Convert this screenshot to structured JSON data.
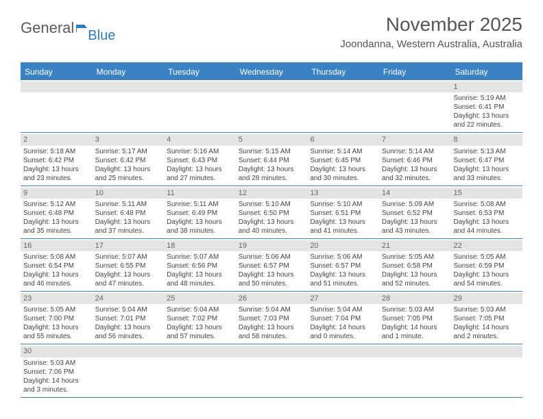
{
  "logo": {
    "text1": "General",
    "text2": "Blue"
  },
  "title": "November 2025",
  "location": "Joondanna, Western Australia, Australia",
  "colors": {
    "header_bg": "#3b82c4",
    "header_text": "#ffffff",
    "border": "#3b82c4",
    "daynum_bg": "#e4e4e4",
    "text": "#444444",
    "logo_gray": "#5a5a5a",
    "logo_blue": "#2c7bc0"
  },
  "day_headers": [
    "Sunday",
    "Monday",
    "Tuesday",
    "Wednesday",
    "Thursday",
    "Friday",
    "Saturday"
  ],
  "weeks": [
    [
      null,
      null,
      null,
      null,
      null,
      null,
      {
        "n": "1",
        "sr": "Sunrise: 5:19 AM",
        "ss": "Sunset: 6:41 PM",
        "d1": "Daylight: 13 hours",
        "d2": "and 22 minutes."
      }
    ],
    [
      {
        "n": "2",
        "sr": "Sunrise: 5:18 AM",
        "ss": "Sunset: 6:42 PM",
        "d1": "Daylight: 13 hours",
        "d2": "and 23 minutes."
      },
      {
        "n": "3",
        "sr": "Sunrise: 5:17 AM",
        "ss": "Sunset: 6:42 PM",
        "d1": "Daylight: 13 hours",
        "d2": "and 25 minutes."
      },
      {
        "n": "4",
        "sr": "Sunrise: 5:16 AM",
        "ss": "Sunset: 6:43 PM",
        "d1": "Daylight: 13 hours",
        "d2": "and 27 minutes."
      },
      {
        "n": "5",
        "sr": "Sunrise: 5:15 AM",
        "ss": "Sunset: 6:44 PM",
        "d1": "Daylight: 13 hours",
        "d2": "and 28 minutes."
      },
      {
        "n": "6",
        "sr": "Sunrise: 5:14 AM",
        "ss": "Sunset: 6:45 PM",
        "d1": "Daylight: 13 hours",
        "d2": "and 30 minutes."
      },
      {
        "n": "7",
        "sr": "Sunrise: 5:14 AM",
        "ss": "Sunset: 6:46 PM",
        "d1": "Daylight: 13 hours",
        "d2": "and 32 minutes."
      },
      {
        "n": "8",
        "sr": "Sunrise: 5:13 AM",
        "ss": "Sunset: 6:47 PM",
        "d1": "Daylight: 13 hours",
        "d2": "and 33 minutes."
      }
    ],
    [
      {
        "n": "9",
        "sr": "Sunrise: 5:12 AM",
        "ss": "Sunset: 6:48 PM",
        "d1": "Daylight: 13 hours",
        "d2": "and 35 minutes."
      },
      {
        "n": "10",
        "sr": "Sunrise: 5:11 AM",
        "ss": "Sunset: 6:48 PM",
        "d1": "Daylight: 13 hours",
        "d2": "and 37 minutes."
      },
      {
        "n": "11",
        "sr": "Sunrise: 5:11 AM",
        "ss": "Sunset: 6:49 PM",
        "d1": "Daylight: 13 hours",
        "d2": "and 38 minutes."
      },
      {
        "n": "12",
        "sr": "Sunrise: 5:10 AM",
        "ss": "Sunset: 6:50 PM",
        "d1": "Daylight: 13 hours",
        "d2": "and 40 minutes."
      },
      {
        "n": "13",
        "sr": "Sunrise: 5:10 AM",
        "ss": "Sunset: 6:51 PM",
        "d1": "Daylight: 13 hours",
        "d2": "and 41 minutes."
      },
      {
        "n": "14",
        "sr": "Sunrise: 5:09 AM",
        "ss": "Sunset: 6:52 PM",
        "d1": "Daylight: 13 hours",
        "d2": "and 43 minutes."
      },
      {
        "n": "15",
        "sr": "Sunrise: 5:08 AM",
        "ss": "Sunset: 6:53 PM",
        "d1": "Daylight: 13 hours",
        "d2": "and 44 minutes."
      }
    ],
    [
      {
        "n": "16",
        "sr": "Sunrise: 5:08 AM",
        "ss": "Sunset: 6:54 PM",
        "d1": "Daylight: 13 hours",
        "d2": "and 46 minutes."
      },
      {
        "n": "17",
        "sr": "Sunrise: 5:07 AM",
        "ss": "Sunset: 6:55 PM",
        "d1": "Daylight: 13 hours",
        "d2": "and 47 minutes."
      },
      {
        "n": "18",
        "sr": "Sunrise: 5:07 AM",
        "ss": "Sunset: 6:56 PM",
        "d1": "Daylight: 13 hours",
        "d2": "and 48 minutes."
      },
      {
        "n": "19",
        "sr": "Sunrise: 5:06 AM",
        "ss": "Sunset: 6:57 PM",
        "d1": "Daylight: 13 hours",
        "d2": "and 50 minutes."
      },
      {
        "n": "20",
        "sr": "Sunrise: 5:06 AM",
        "ss": "Sunset: 6:57 PM",
        "d1": "Daylight: 13 hours",
        "d2": "and 51 minutes."
      },
      {
        "n": "21",
        "sr": "Sunrise: 5:05 AM",
        "ss": "Sunset: 6:58 PM",
        "d1": "Daylight: 13 hours",
        "d2": "and 52 minutes."
      },
      {
        "n": "22",
        "sr": "Sunrise: 5:05 AM",
        "ss": "Sunset: 6:59 PM",
        "d1": "Daylight: 13 hours",
        "d2": "and 54 minutes."
      }
    ],
    [
      {
        "n": "23",
        "sr": "Sunrise: 5:05 AM",
        "ss": "Sunset: 7:00 PM",
        "d1": "Daylight: 13 hours",
        "d2": "and 55 minutes."
      },
      {
        "n": "24",
        "sr": "Sunrise: 5:04 AM",
        "ss": "Sunset: 7:01 PM",
        "d1": "Daylight: 13 hours",
        "d2": "and 56 minutes."
      },
      {
        "n": "25",
        "sr": "Sunrise: 5:04 AM",
        "ss": "Sunset: 7:02 PM",
        "d1": "Daylight: 13 hours",
        "d2": "and 57 minutes."
      },
      {
        "n": "26",
        "sr": "Sunrise: 5:04 AM",
        "ss": "Sunset: 7:03 PM",
        "d1": "Daylight: 13 hours",
        "d2": "and 58 minutes."
      },
      {
        "n": "27",
        "sr": "Sunrise: 5:04 AM",
        "ss": "Sunset: 7:04 PM",
        "d1": "Daylight: 14 hours",
        "d2": "and 0 minutes."
      },
      {
        "n": "28",
        "sr": "Sunrise: 5:03 AM",
        "ss": "Sunset: 7:05 PM",
        "d1": "Daylight: 14 hours",
        "d2": "and 1 minute."
      },
      {
        "n": "29",
        "sr": "Sunrise: 5:03 AM",
        "ss": "Sunset: 7:05 PM",
        "d1": "Daylight: 14 hours",
        "d2": "and 2 minutes."
      }
    ],
    [
      {
        "n": "30",
        "sr": "Sunrise: 5:03 AM",
        "ss": "Sunset: 7:06 PM",
        "d1": "Daylight: 14 hours",
        "d2": "and 3 minutes."
      },
      null,
      null,
      null,
      null,
      null,
      null
    ]
  ]
}
